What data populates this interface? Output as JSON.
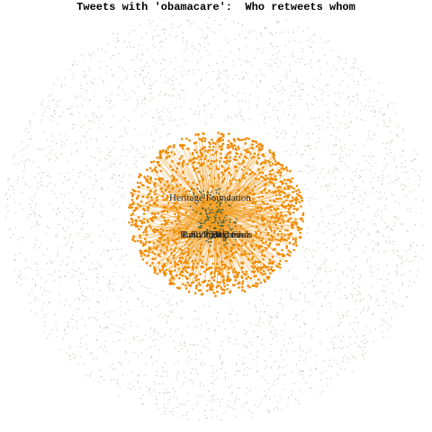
{
  "title": "Tweets with 'obamacare':  Who retweets whom",
  "colors": {
    "background": "#ffffff",
    "periphery_dot": "#b3ab9a",
    "retweeter_dot": "#f08a00",
    "edge": "#f39a1e",
    "hub": "#3d5a3a"
  },
  "labels": [
    {
      "name": "Heritage Foundation"
    },
    {
      "name": "Ted Cruz"
    },
    {
      "name": "Rand Paul"
    },
    {
      "name": "Rally Congress"
    },
    {
      "name": "ScottBeDaniels"
    }
  ]
}
